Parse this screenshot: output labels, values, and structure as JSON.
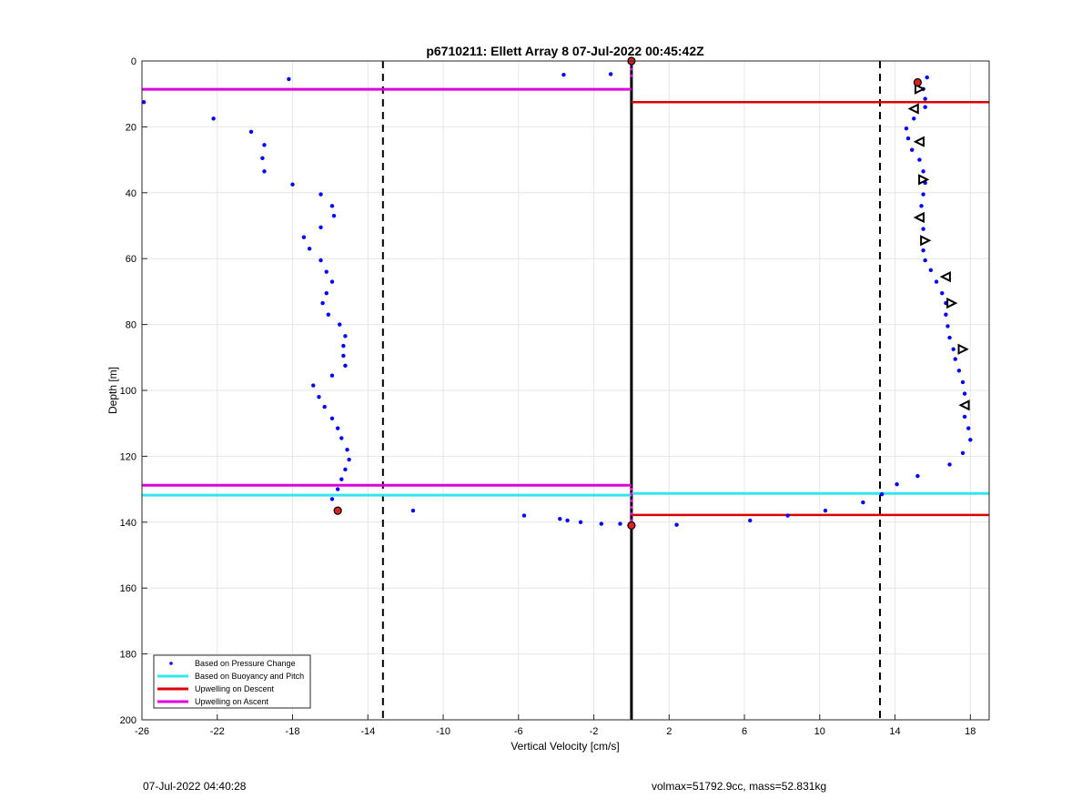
{
  "chart_data": {
    "type": "scatter",
    "title": "p6710211: Ellett Array 8 07-Jul-2022 00:45:42Z",
    "xlabel": "Vertical Velocity [cm/s]",
    "ylabel": "Depth [m]",
    "xlim": [
      -26,
      19
    ],
    "ylim": [
      0,
      200
    ],
    "y_reversed": true,
    "grid": true,
    "xticks": [
      -26,
      -22,
      -18,
      -14,
      -10,
      -6,
      -2,
      2,
      6,
      10,
      14,
      18
    ],
    "yticks": [
      0,
      20,
      40,
      60,
      80,
      100,
      120,
      140,
      160,
      180,
      200
    ],
    "legend_location": "bottom-left",
    "legend": [
      {
        "label": "Based on Pressure Change",
        "style": "dots",
        "color": "#0000ff"
      },
      {
        "label": "Based on Buoyancy and Pitch",
        "style": "line",
        "color": "#33e6ee"
      },
      {
        "label": "Upwelling on Descent",
        "style": "line",
        "color": "#dd0000"
      },
      {
        "label": "Upwelling on Ascent",
        "style": "line",
        "color": "#dd00dd"
      }
    ],
    "pressure_change_points": [
      [
        -18.2,
        5.5
      ],
      [
        -3.6,
        4.2
      ],
      [
        -1.1,
        4.0
      ],
      [
        -25.9,
        12.5
      ],
      [
        -22.2,
        17.5
      ],
      [
        -20.2,
        21.5
      ],
      [
        -19.5,
        25.5
      ],
      [
        -19.6,
        29.5
      ],
      [
        -19.5,
        33.5
      ],
      [
        -18.0,
        37.5
      ],
      [
        -16.5,
        40.5
      ],
      [
        -15.9,
        44.0
      ],
      [
        -15.8,
        47.0
      ],
      [
        -16.5,
        50.5
      ],
      [
        -17.4,
        53.5
      ],
      [
        -17.1,
        57.0
      ],
      [
        -16.5,
        60.5
      ],
      [
        -16.2,
        64.0
      ],
      [
        -15.9,
        67.0
      ],
      [
        -16.2,
        70.5
      ],
      [
        -16.4,
        73.5
      ],
      [
        -16.1,
        77.0
      ],
      [
        -15.5,
        80.0
      ],
      [
        -15.2,
        83.5
      ],
      [
        -15.3,
        86.5
      ],
      [
        -15.3,
        89.5
      ],
      [
        -15.2,
        92.5
      ],
      [
        -15.9,
        95.5
      ],
      [
        -16.9,
        98.5
      ],
      [
        -16.6,
        102.0
      ],
      [
        -16.3,
        105.0
      ],
      [
        -15.9,
        108.5
      ],
      [
        -15.6,
        111.5
      ],
      [
        -15.4,
        114.5
      ],
      [
        -15.1,
        118.0
      ],
      [
        -15.0,
        121.0
      ],
      [
        -15.2,
        124.0
      ],
      [
        -15.4,
        127.0
      ],
      [
        -15.6,
        130.0
      ],
      [
        -15.9,
        133.0
      ],
      [
        -15.6,
        136.5
      ],
      [
        -11.6,
        136.5
      ],
      [
        -5.7,
        138.0
      ],
      [
        -3.8,
        139.0
      ],
      [
        -3.4,
        139.5
      ],
      [
        -2.7,
        140.0
      ],
      [
        -1.6,
        140.5
      ],
      [
        -0.6,
        140.5
      ],
      [
        0.0,
        141.0
      ],
      [
        2.4,
        140.8
      ],
      [
        6.3,
        139.5
      ],
      [
        8.3,
        138.0
      ],
      [
        10.3,
        136.5
      ],
      [
        12.3,
        134.0
      ],
      [
        13.3,
        131.5
      ],
      [
        14.1,
        128.5
      ],
      [
        15.2,
        126.0
      ],
      [
        16.9,
        122.5
      ],
      [
        17.6,
        119.0
      ],
      [
        18.0,
        115.0
      ],
      [
        17.9,
        111.5
      ],
      [
        17.7,
        108.0
      ],
      [
        17.7,
        104.5
      ],
      [
        17.7,
        101.0
      ],
      [
        17.6,
        97.5
      ],
      [
        17.4,
        94.0
      ],
      [
        17.2,
        90.5
      ],
      [
        17.1,
        87.5
      ],
      [
        16.9,
        84.0
      ],
      [
        16.8,
        80.5
      ],
      [
        16.7,
        77.0
      ],
      [
        16.7,
        73.5
      ],
      [
        16.5,
        70.5
      ],
      [
        16.2,
        67.0
      ],
      [
        15.9,
        63.5
      ],
      [
        15.6,
        60.5
      ],
      [
        15.5,
        57.5
      ],
      [
        15.6,
        54.5
      ],
      [
        15.5,
        51.0
      ],
      [
        15.4,
        47.5
      ],
      [
        15.4,
        44.0
      ],
      [
        15.5,
        40.5
      ],
      [
        15.6,
        37.0
      ],
      [
        15.5,
        33.5
      ],
      [
        15.3,
        30.0
      ],
      [
        14.9,
        27.0
      ],
      [
        14.7,
        23.5
      ],
      [
        14.6,
        20.5
      ],
      [
        15.0,
        17.5
      ],
      [
        15.6,
        14.0
      ],
      [
        15.6,
        11.5
      ],
      [
        15.5,
        8.5
      ],
      [
        15.7,
        5.0
      ],
      [
        15.2,
        7.0
      ]
    ],
    "triangle_markers": [
      [
        15.3,
        8.5,
        "right"
      ],
      [
        15.0,
        14.5,
        "left"
      ],
      [
        15.3,
        24.5,
        "left"
      ],
      [
        15.5,
        36.0,
        "right"
      ],
      [
        15.3,
        47.5,
        "left"
      ],
      [
        15.6,
        54.5,
        "right"
      ],
      [
        16.7,
        65.5,
        "left"
      ],
      [
        17.0,
        73.5,
        "right"
      ],
      [
        17.6,
        87.5,
        "right"
      ],
      [
        17.7,
        104.5,
        "left"
      ]
    ],
    "red_markers": [
      [
        15.2,
        6.5
      ],
      [
        -15.6,
        136.5
      ],
      [
        0.0,
        0.0
      ],
      [
        0.0,
        141.0
      ]
    ],
    "buoyancy_pitch_segments": [
      [
        -26,
        131.8,
        0,
        131.8
      ],
      [
        0,
        131.3,
        19,
        131.3
      ]
    ],
    "upwelling_descent_segments": [
      [
        0,
        12.5,
        19,
        12.5
      ],
      [
        0,
        137.8,
        19,
        137.8
      ]
    ],
    "upwelling_ascent_segments": [
      [
        -26,
        8.6,
        0,
        8.6
      ],
      [
        -26,
        128.8,
        0,
        128.8
      ]
    ],
    "vertical_lines": [
      {
        "x": 0,
        "style": "solid"
      },
      {
        "x": -13.2,
        "style": "dashed"
      },
      {
        "x": 13.2,
        "style": "dashed"
      }
    ]
  },
  "footer": {
    "left": "07-Jul-2022 04:40:28",
    "right": "volmax=51792.9cc, mass=52.831kg"
  }
}
